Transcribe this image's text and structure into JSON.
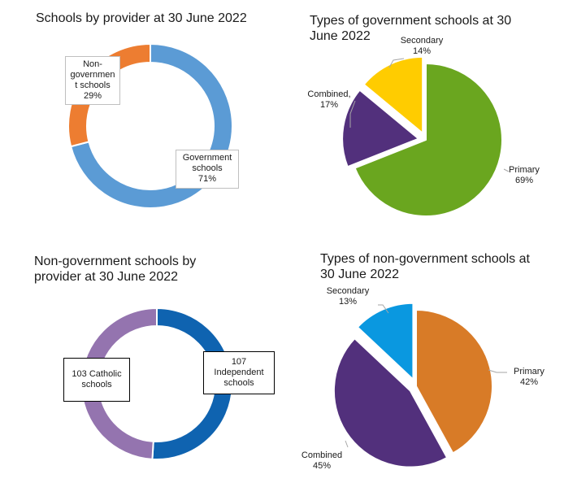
{
  "chart_data": [
    {
      "type": "pie",
      "title": "Schools by provider at 30 June 2022",
      "slices": [
        {
          "label": "Government\nschools\n71%",
          "value": 71,
          "color": "#5B9BD5"
        },
        {
          "label": "Non-\ngovernmen\nt schools\n29%",
          "value": 29,
          "color": "#ED7D31"
        }
      ]
    },
    {
      "type": "pie",
      "title": "Types of government schools at 30\nJune 2022",
      "slices": [
        {
          "label": "Primary\n69%",
          "value": 69,
          "color": "#6AA61F"
        },
        {
          "label": "Combined,\n17%",
          "value": 17,
          "color": "#52307C"
        },
        {
          "label": "Secondary\n14%",
          "value": 14,
          "color": "#FFCC00"
        }
      ]
    },
    {
      "type": "pie",
      "title": "Non-government schools by\nprovider at 30 June 2022",
      "slices": [
        {
          "label": "107\nIndependent\nschools",
          "value": 107,
          "color": "#0F63B0"
        },
        {
          "label": "103 Catholic\nschools",
          "value": 103,
          "color": "#9474AF"
        }
      ]
    },
    {
      "type": "pie",
      "title": "Types of non-government schools at\n30 June 2022",
      "slices": [
        {
          "label": "Primary\n42%",
          "value": 42,
          "color": "#D87B27"
        },
        {
          "label": "Combined\n45%",
          "value": 45,
          "color": "#52307C"
        },
        {
          "label": "Secondary\n13%",
          "value": 13,
          "color": "#0A98E0"
        }
      ]
    }
  ]
}
